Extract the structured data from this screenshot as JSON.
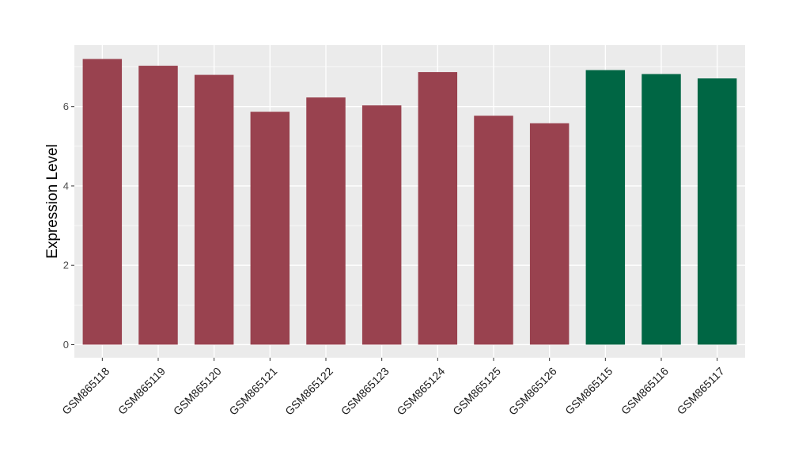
{
  "chart_data": {
    "type": "bar",
    "title": "",
    "xlabel": "",
    "ylabel": "Expression Level",
    "ylim": [
      -0.33,
      7.55
    ],
    "y_ticks": [
      0,
      2,
      4,
      6
    ],
    "y_tick_labels": [
      "0",
      "2",
      "4",
      "6"
    ],
    "grid": true,
    "legend": "none",
    "categories": [
      "GSM865118",
      "GSM865119",
      "GSM865120",
      "GSM865121",
      "GSM865122",
      "GSM865123",
      "GSM865124",
      "GSM865125",
      "GSM865126",
      "GSM865115",
      "GSM865116",
      "GSM865117"
    ],
    "values": [
      7.2,
      7.03,
      6.8,
      5.87,
      6.23,
      6.03,
      6.87,
      5.77,
      5.58,
      6.92,
      6.82,
      6.71
    ],
    "bar_colors": [
      "#99424f",
      "#99424f",
      "#99424f",
      "#99424f",
      "#99424f",
      "#99424f",
      "#99424f",
      "#99424f",
      "#99424f",
      "#006644",
      "#006644",
      "#006644"
    ],
    "panel_background": "#ebebeb",
    "grid_color": "#ffffff"
  }
}
